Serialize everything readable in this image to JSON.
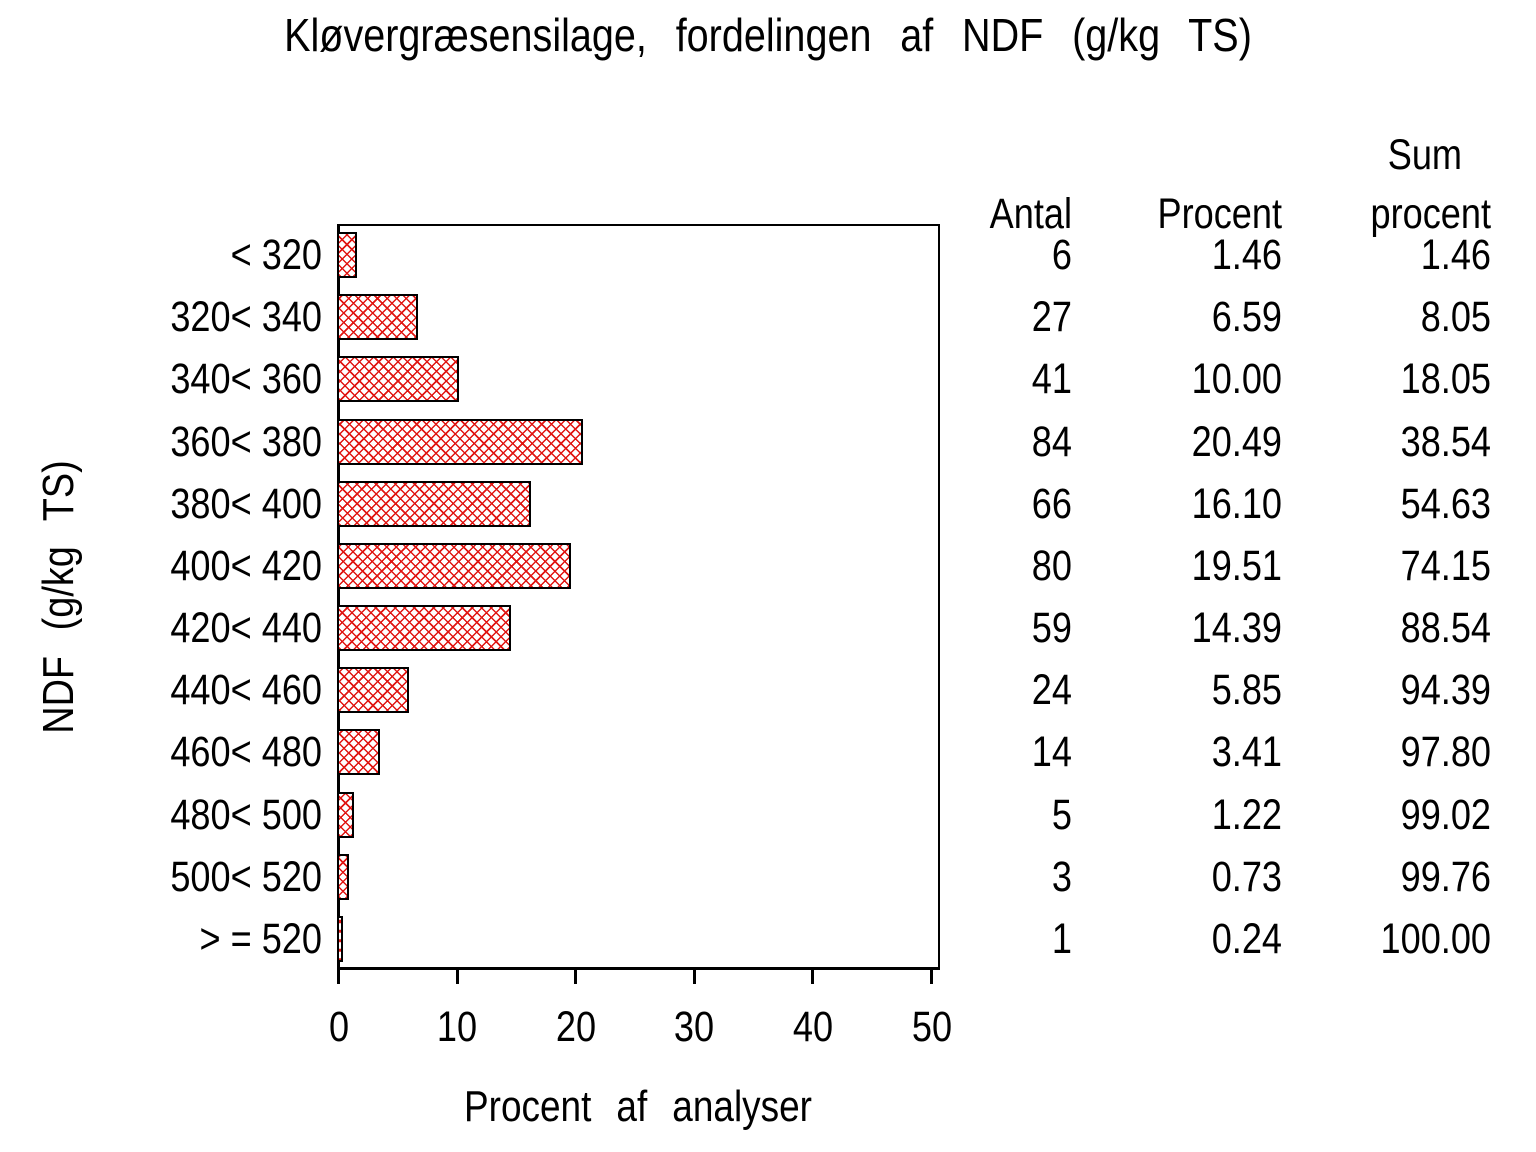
{
  "title": "Kløvergræsensilage, fordelingen af NDF (g/kg TS)",
  "x_axis": {
    "label": "Procent af analyser",
    "ticks": [
      "0",
      "10",
      "20",
      "30",
      "40",
      "50"
    ],
    "min": 0,
    "max": 50
  },
  "y_axis": {
    "label": "NDF (g/kg TS)"
  },
  "table": {
    "headers": {
      "antal": "Antal",
      "procent": "Procent",
      "sum_line1": "Sum",
      "sum_line2": "procent"
    }
  },
  "chart_data": {
    "type": "bar",
    "orientation": "horizontal",
    "title": "Kløvergræsensilage, fordelingen af NDF (g/kg TS)",
    "xlabel": "Procent af analyser",
    "ylabel": "NDF (g/kg TS)",
    "xlim": [
      0,
      50
    ],
    "grid": false,
    "legend": false,
    "bar_fill": "crosshatch",
    "bar_color": "#e01512",
    "bar_border_color": "#000000",
    "categories": [
      "< 320",
      "320< 340",
      "340< 360",
      "360< 380",
      "380< 400",
      "400< 420",
      "420< 440",
      "440< 460",
      "460< 480",
      "480< 500",
      "500< 520",
      "> = 520"
    ],
    "series": [
      {
        "name": "Antal",
        "values": [
          6,
          27,
          41,
          84,
          66,
          80,
          59,
          24,
          14,
          5,
          3,
          1
        ]
      },
      {
        "name": "Procent",
        "values": [
          1.46,
          6.59,
          10.0,
          20.49,
          16.1,
          19.51,
          14.39,
          5.85,
          3.41,
          1.22,
          0.73,
          0.24
        ]
      },
      {
        "name": "Sum procent",
        "values": [
          1.46,
          8.05,
          18.05,
          38.54,
          54.63,
          74.15,
          88.54,
          94.39,
          97.8,
          99.02,
          99.76,
          100.0
        ]
      }
    ],
    "display": {
      "antal": [
        "6",
        "27",
        "41",
        "84",
        "66",
        "80",
        "59",
        "24",
        "14",
        "5",
        "3",
        "1"
      ],
      "procent": [
        "1.46",
        "6.59",
        "10.00",
        "20.49",
        "16.10",
        "19.51",
        "14.39",
        "5.85",
        "3.41",
        "1.22",
        "0.73",
        "0.24"
      ],
      "sum": [
        "1.46",
        "8.05",
        "18.05",
        "38.54",
        "54.63",
        "74.15",
        "88.54",
        "94.39",
        "97.80",
        "99.02",
        "99.76",
        "100.00"
      ]
    },
    "bar_series": "Procent"
  }
}
